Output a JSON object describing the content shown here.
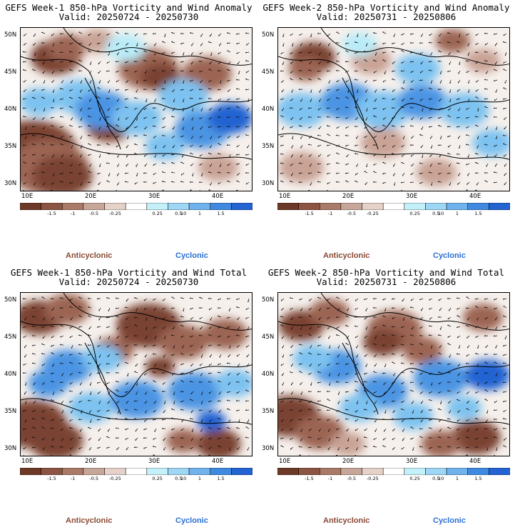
{
  "panels": [
    {
      "id": "w1-anom",
      "title": "GEFS Week-1 850-hPa Vorticity and Wind Anomaly",
      "valid": "Valid: 20250724 - 20250730",
      "blobs": [
        [
          0.05,
          0.75,
          0.9,
          "a3"
        ],
        [
          0.12,
          0.85,
          0.8,
          "a2"
        ],
        [
          0.18,
          0.9,
          0.6,
          "a3"
        ],
        [
          0.15,
          0.18,
          0.5,
          "a3"
        ],
        [
          0.2,
          0.12,
          0.4,
          "a2"
        ],
        [
          0.33,
          0.08,
          0.35,
          "a1"
        ],
        [
          0.55,
          0.25,
          0.6,
          "a2"
        ],
        [
          0.6,
          0.3,
          0.4,
          "a3"
        ],
        [
          0.8,
          0.28,
          0.5,
          "a2"
        ],
        [
          0.38,
          0.6,
          0.45,
          "a3"
        ],
        [
          0.85,
          0.85,
          0.4,
          "a1"
        ],
        [
          0.25,
          0.42,
          0.5,
          "c2"
        ],
        [
          0.35,
          0.5,
          0.55,
          "c3"
        ],
        [
          0.5,
          0.55,
          0.5,
          "c2"
        ],
        [
          0.78,
          0.62,
          0.55,
          "c3"
        ],
        [
          0.9,
          0.55,
          0.45,
          "c4"
        ],
        [
          0.7,
          0.42,
          0.5,
          "c2"
        ],
        [
          0.08,
          0.45,
          0.4,
          "c2"
        ],
        [
          0.45,
          0.12,
          0.4,
          "c1"
        ],
        [
          0.62,
          0.72,
          0.4,
          "c2"
        ]
      ]
    },
    {
      "id": "w2-anom",
      "title": "GEFS Week-2 850-hPa Vorticity and Wind Anomaly",
      "valid": "Valid: 20250731 - 20250806",
      "blobs": [
        [
          0.15,
          0.18,
          0.45,
          "a3"
        ],
        [
          0.12,
          0.25,
          0.35,
          "a2"
        ],
        [
          0.4,
          0.2,
          0.4,
          "a1"
        ],
        [
          0.75,
          0.08,
          0.35,
          "a2"
        ],
        [
          0.88,
          0.2,
          0.35,
          "a1"
        ],
        [
          0.45,
          0.7,
          0.45,
          "a1"
        ],
        [
          0.1,
          0.85,
          0.45,
          "a1"
        ],
        [
          0.68,
          0.88,
          0.4,
          "a1"
        ],
        [
          0.1,
          0.5,
          0.5,
          "c2"
        ],
        [
          0.3,
          0.45,
          0.55,
          "c3"
        ],
        [
          0.45,
          0.5,
          0.55,
          "c2"
        ],
        [
          0.62,
          0.45,
          0.5,
          "c3"
        ],
        [
          0.8,
          0.5,
          0.5,
          "c2"
        ],
        [
          0.6,
          0.25,
          0.45,
          "c2"
        ],
        [
          0.35,
          0.1,
          0.35,
          "c1"
        ],
        [
          0.92,
          0.7,
          0.4,
          "c2"
        ]
      ]
    },
    {
      "id": "w1-total",
      "title": "GEFS Week-1 850-hPa Vorticity and Wind Total",
      "valid": "Valid: 20250724 - 20250730",
      "blobs": [
        [
          0.08,
          0.15,
          0.5,
          "a3"
        ],
        [
          0.2,
          0.1,
          0.45,
          "a2"
        ],
        [
          0.05,
          0.8,
          0.7,
          "a3"
        ],
        [
          0.15,
          0.9,
          0.55,
          "a3"
        ],
        [
          0.55,
          0.2,
          0.65,
          "a3"
        ],
        [
          0.7,
          0.3,
          0.5,
          "a2"
        ],
        [
          0.88,
          0.25,
          0.45,
          "a2"
        ],
        [
          0.4,
          0.35,
          0.4,
          "a2"
        ],
        [
          0.6,
          0.45,
          0.3,
          "a3"
        ],
        [
          0.85,
          0.92,
          0.45,
          "a3"
        ],
        [
          0.7,
          0.9,
          0.35,
          "a2"
        ],
        [
          0.2,
          0.45,
          0.5,
          "c3"
        ],
        [
          0.35,
          0.4,
          0.4,
          "c2"
        ],
        [
          0.12,
          0.55,
          0.4,
          "c3"
        ],
        [
          0.5,
          0.65,
          0.55,
          "c3"
        ],
        [
          0.75,
          0.6,
          0.55,
          "c3"
        ],
        [
          0.3,
          0.7,
          0.45,
          "c2"
        ],
        [
          0.92,
          0.55,
          0.4,
          "c2"
        ],
        [
          0.82,
          0.78,
          0.3,
          "c4"
        ]
      ]
    },
    {
      "id": "w2-total",
      "title": "GEFS Week-2 850-hPa Vorticity and Wind Total",
      "valid": "Valid: 20250731 - 20250806",
      "blobs": [
        [
          0.1,
          0.2,
          0.45,
          "a3"
        ],
        [
          0.22,
          0.12,
          0.4,
          "a2"
        ],
        [
          0.05,
          0.75,
          0.6,
          "a3"
        ],
        [
          0.18,
          0.85,
          0.5,
          "a2"
        ],
        [
          0.5,
          0.22,
          0.55,
          "a2"
        ],
        [
          0.45,
          0.3,
          0.4,
          "a3"
        ],
        [
          0.62,
          0.35,
          0.4,
          "a2"
        ],
        [
          0.88,
          0.15,
          0.4,
          "a2"
        ],
        [
          0.85,
          0.88,
          0.5,
          "a3"
        ],
        [
          0.7,
          0.92,
          0.4,
          "a2"
        ],
        [
          0.3,
          0.92,
          0.35,
          "a1"
        ],
        [
          0.25,
          0.45,
          0.5,
          "c3"
        ],
        [
          0.15,
          0.4,
          0.4,
          "c2"
        ],
        [
          0.45,
          0.6,
          0.5,
          "c3"
        ],
        [
          0.7,
          0.52,
          0.55,
          "c3"
        ],
        [
          0.9,
          0.5,
          0.45,
          "c4"
        ],
        [
          0.58,
          0.75,
          0.4,
          "c2"
        ],
        [
          0.35,
          0.7,
          0.4,
          "c2"
        ],
        [
          0.8,
          0.7,
          0.35,
          "c2"
        ]
      ]
    }
  ],
  "lat_labels": [
    "50N",
    "45N",
    "40N",
    "35N",
    "30N"
  ],
  "lon_labels": [
    "10E",
    "20E",
    "30E",
    "40E"
  ],
  "colorbar": {
    "labels": [
      "-1.5",
      "-1",
      "-0.5",
      "-0.25",
      "0.25",
      "0.5",
      "1",
      "1.5"
    ],
    "scale_label": "10",
    "colors": [
      "#6e3a28",
      "#8c5443",
      "#a97a67",
      "#c7a69a",
      "#e5d1c8",
      "#ffffff",
      "#c4f0fa",
      "#9ed6f5",
      "#6fb2ec",
      "#3f8ae0",
      "#2463d2"
    ]
  },
  "legend": {
    "anticyclonic": "Anticyclonic",
    "cyclonic": "Cyclonic"
  },
  "fill_colors": {
    "a3": "#7a4232",
    "a2": "#9c6553",
    "a1": "#c9a395",
    "c1": "#b9ecf8",
    "c2": "#7dc2f0",
    "c3": "#4b94e3",
    "c4": "#2463d2"
  }
}
